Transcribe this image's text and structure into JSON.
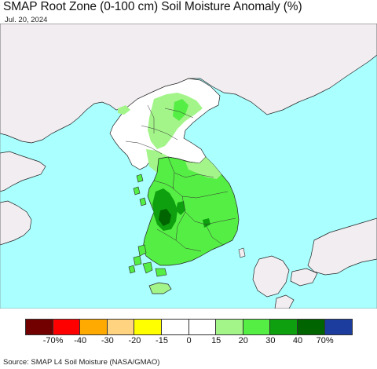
{
  "title": "SMAP Root Zone (0-100 cm) Soil Moisture Anomaly (%)",
  "date": "Jul. 20, 2024",
  "source": "Source: SMAP L4 Soil Moisture (NASA/GMAO)",
  "colors": {
    "ocean": "#aaffff",
    "land_outside": "#f1edf1",
    "land_neutral": "#ffffff",
    "border": "#222222"
  },
  "legend": {
    "ticks": [
      "-70%",
      "-40",
      "-30",
      "-20",
      "-15",
      "0",
      "15",
      "20",
      "30",
      "40",
      "70%"
    ],
    "colors": [
      "#730000",
      "#ff0000",
      "#ffaa00",
      "#ffd37f",
      "#ffff00",
      "#ffffff",
      "#ffffff",
      "#a3f58a",
      "#55ee44",
      "#0fa00f",
      "#006400",
      "#1c3c9e"
    ]
  }
}
